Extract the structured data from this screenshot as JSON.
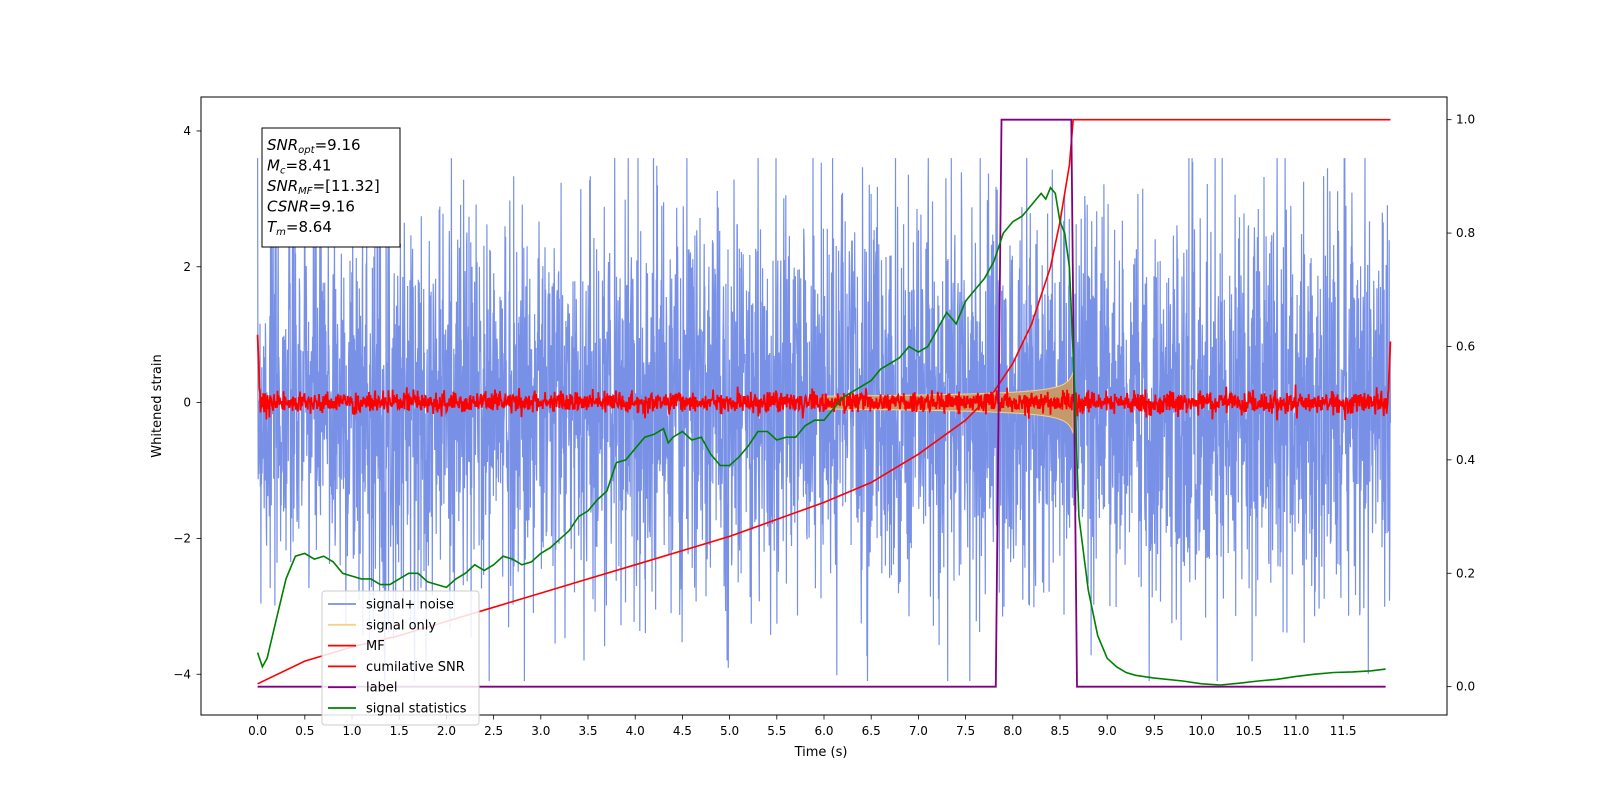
{
  "chart_data": {
    "type": "line",
    "xlabel": "Time (s)",
    "ylabel": "Whitened strain",
    "xlim": [
      -0.6,
      12.6
    ],
    "ylim": [
      -4.6,
      4.5
    ],
    "y2lim": [
      -0.05,
      1.04
    ],
    "x_ticks": [
      "0.0",
      "0.5",
      "1.0",
      "1.5",
      "2.0",
      "2.5",
      "3.0",
      "3.5",
      "4.0",
      "4.5",
      "5.0",
      "5.5",
      "6.0",
      "6.5",
      "7.0",
      "7.5",
      "8.0",
      "8.5",
      "9.0",
      "9.5",
      "10.0",
      "10.5",
      "11.0",
      "11.5"
    ],
    "y_ticks": [
      "4",
      "2",
      "0",
      "−2",
      "−4"
    ],
    "y2_ticks": [
      "1.0",
      "0.8",
      "0.6",
      "0.4",
      "0.2",
      "0.0"
    ],
    "grid": false,
    "legend_position": "lower-left",
    "annotation": {
      "lines": [
        {
          "sym": "SNR",
          "sub": "opt",
          "value": "=9.16"
        },
        {
          "sym": "M",
          "sub": "c",
          "value": "=8.41"
        },
        {
          "sym": "SNR",
          "sub": "MF",
          "value": "=[11.32]"
        },
        {
          "sym": "CSNR",
          "sub": "",
          "value": "=9.16"
        },
        {
          "sym": "T",
          "sub": "m",
          "value": "=8.64"
        }
      ]
    },
    "series": [
      {
        "name": "signal+ noise",
        "color": "#7891e7",
        "axis": "left",
        "amplitude": 1.45,
        "x_range": [
          0.0,
          12.0
        ]
      },
      {
        "name": "signal only",
        "color": "#f7d08a",
        "axis": "left",
        "fill_color": "#c49a6c",
        "chirp_end": 8.64,
        "max_amplitude": 0.7
      },
      {
        "name": "MF",
        "color": "#ff0000",
        "axis": "left",
        "amplitude": 0.13
      },
      {
        "name": "cumilative SNR",
        "color": "#ff0000",
        "axis": "right",
        "x": [
          0.0,
          0.5,
          1.0,
          1.5,
          2.0,
          2.5,
          3.0,
          3.5,
          4.0,
          4.5,
          5.0,
          5.5,
          6.0,
          6.5,
          7.0,
          7.5,
          7.8,
          8.0,
          8.2,
          8.4,
          8.5,
          8.6,
          8.64,
          8.65,
          12.0
        ],
        "y": [
          0.005,
          0.045,
          0.07,
          0.09,
          0.115,
          0.14,
          0.165,
          0.19,
          0.215,
          0.24,
          0.265,
          0.295,
          0.325,
          0.36,
          0.41,
          0.47,
          0.52,
          0.57,
          0.64,
          0.74,
          0.82,
          0.92,
          1.0,
          1.0,
          1.0
        ]
      },
      {
        "name": "label",
        "color": "#800080",
        "axis": "right",
        "x": [
          0.0,
          7.82,
          7.88,
          8.62,
          8.68,
          11.95
        ],
        "y": [
          0.0,
          0.0,
          1.0,
          1.0,
          0.0,
          0.0
        ]
      },
      {
        "name": "signal statistics",
        "color": "#008000",
        "axis": "right",
        "x": [
          0.0,
          0.05,
          0.1,
          0.2,
          0.3,
          0.4,
          0.5,
          0.6,
          0.7,
          0.8,
          0.9,
          1.0,
          1.1,
          1.2,
          1.3,
          1.4,
          1.5,
          1.6,
          1.7,
          1.8,
          1.9,
          2.0,
          2.1,
          2.2,
          2.3,
          2.4,
          2.5,
          2.6,
          2.7,
          2.8,
          2.9,
          3.0,
          3.1,
          3.2,
          3.3,
          3.4,
          3.5,
          3.6,
          3.7,
          3.8,
          3.9,
          4.0,
          4.1,
          4.2,
          4.3,
          4.35,
          4.4,
          4.5,
          4.6,
          4.7,
          4.8,
          4.9,
          5.0,
          5.1,
          5.2,
          5.3,
          5.4,
          5.5,
          5.6,
          5.7,
          5.8,
          5.9,
          6.0,
          6.1,
          6.2,
          6.3,
          6.4,
          6.5,
          6.6,
          6.7,
          6.8,
          6.9,
          7.0,
          7.1,
          7.2,
          7.3,
          7.4,
          7.5,
          7.6,
          7.7,
          7.8,
          7.9,
          8.0,
          8.1,
          8.2,
          8.3,
          8.35,
          8.4,
          8.45,
          8.5,
          8.55,
          8.6,
          8.65,
          8.7,
          8.8,
          8.9,
          9.0,
          9.1,
          9.2,
          9.3,
          9.5,
          9.8,
          10.0,
          10.2,
          10.4,
          10.6,
          10.8,
          11.0,
          11.2,
          11.4,
          11.6,
          11.8,
          11.95
        ],
        "y": [
          0.06,
          0.035,
          0.05,
          0.12,
          0.19,
          0.23,
          0.235,
          0.225,
          0.23,
          0.22,
          0.2,
          0.195,
          0.19,
          0.19,
          0.18,
          0.18,
          0.19,
          0.2,
          0.2,
          0.185,
          0.18,
          0.175,
          0.19,
          0.2,
          0.215,
          0.205,
          0.215,
          0.23,
          0.225,
          0.215,
          0.22,
          0.235,
          0.245,
          0.26,
          0.275,
          0.3,
          0.31,
          0.33,
          0.345,
          0.395,
          0.4,
          0.42,
          0.44,
          0.445,
          0.455,
          0.43,
          0.44,
          0.45,
          0.435,
          0.44,
          0.41,
          0.39,
          0.39,
          0.405,
          0.425,
          0.45,
          0.45,
          0.435,
          0.44,
          0.44,
          0.46,
          0.47,
          0.47,
          0.49,
          0.51,
          0.52,
          0.53,
          0.54,
          0.56,
          0.57,
          0.58,
          0.6,
          0.59,
          0.6,
          0.63,
          0.66,
          0.64,
          0.68,
          0.7,
          0.72,
          0.75,
          0.8,
          0.82,
          0.83,
          0.85,
          0.87,
          0.86,
          0.88,
          0.87,
          0.82,
          0.8,
          0.74,
          0.55,
          0.3,
          0.17,
          0.09,
          0.05,
          0.035,
          0.025,
          0.02,
          0.015,
          0.01,
          0.005,
          0.003,
          0.006,
          0.01,
          0.013,
          0.018,
          0.022,
          0.025,
          0.026,
          0.028,
          0.031
        ]
      }
    ]
  }
}
